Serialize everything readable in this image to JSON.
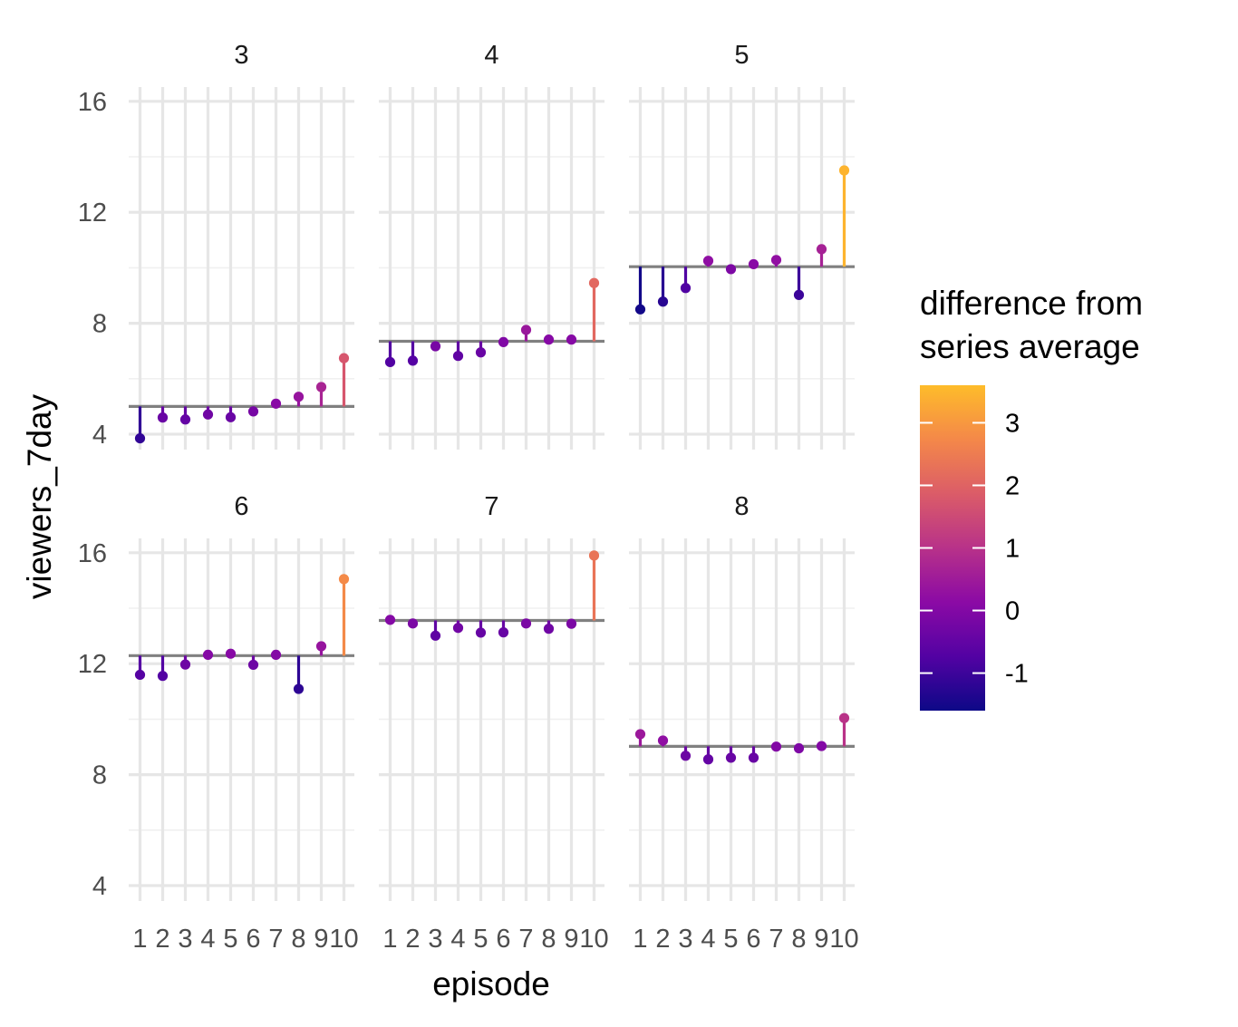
{
  "chart_data": {
    "type": "lollipop",
    "xlabel": "episode",
    "ylabel": "viewers_7day",
    "ylim": [
      3.6,
      16.5
    ],
    "y_ticks": [
      4,
      8,
      12,
      16
    ],
    "x_ticks": [
      "1",
      "2",
      "3",
      "4",
      "5",
      "6",
      "7",
      "8",
      "9",
      "10"
    ],
    "grid": true,
    "facet_layout": {
      "rows": 2,
      "cols": 3
    },
    "legend": {
      "title_lines": [
        "difference from",
        "series average"
      ],
      "placement": "right",
      "range": [
        -1.6,
        3.6
      ],
      "ticks": [
        -1,
        0,
        1,
        2,
        3
      ],
      "colors": [
        "#0d0887",
        "#5302a3",
        "#8b0aa5",
        "#b83289",
        "#db5c68",
        "#f48849",
        "#febc2a"
      ]
    },
    "panels": [
      {
        "series": "3",
        "average": 5.0,
        "x": [
          1,
          2,
          3,
          4,
          5,
          6,
          7,
          8,
          9,
          10
        ],
        "values": [
          3.85,
          4.6,
          4.53,
          4.71,
          4.61,
          4.82,
          5.1,
          5.35,
          5.7,
          6.74
        ]
      },
      {
        "series": "4",
        "average": 7.35,
        "x": [
          1,
          2,
          3,
          4,
          5,
          6,
          7,
          8,
          9,
          10
        ],
        "values": [
          6.6,
          6.65,
          7.17,
          6.82,
          6.95,
          7.32,
          7.76,
          7.41,
          7.41,
          9.45
        ]
      },
      {
        "series": "5",
        "average": 10.04,
        "x": [
          1,
          2,
          3,
          4,
          5,
          6,
          7,
          8,
          9,
          10
        ],
        "values": [
          8.5,
          8.78,
          9.27,
          10.25,
          9.95,
          10.13,
          10.28,
          9.02,
          10.67,
          13.51
        ]
      },
      {
        "series": "6",
        "average": 12.29,
        "x": [
          1,
          2,
          3,
          4,
          5,
          6,
          7,
          8,
          9,
          10
        ],
        "values": [
          11.6,
          11.56,
          11.97,
          12.32,
          12.36,
          11.96,
          12.32,
          11.09,
          12.63,
          15.05
        ]
      },
      {
        "series": "7",
        "average": 13.56,
        "x": [
          1,
          2,
          3,
          4,
          5,
          6,
          7,
          8,
          9,
          10
        ],
        "values": [
          13.58,
          13.45,
          13.01,
          13.29,
          13.12,
          13.13,
          13.45,
          13.26,
          13.44,
          15.9
        ]
      },
      {
        "series": "8",
        "average": 9.02,
        "x": [
          1,
          2,
          3,
          4,
          5,
          6,
          7,
          8,
          9,
          10
        ],
        "values": [
          9.46,
          9.23,
          8.68,
          8.55,
          8.61,
          8.61,
          9.01,
          8.95,
          9.03,
          10.04
        ]
      }
    ]
  }
}
